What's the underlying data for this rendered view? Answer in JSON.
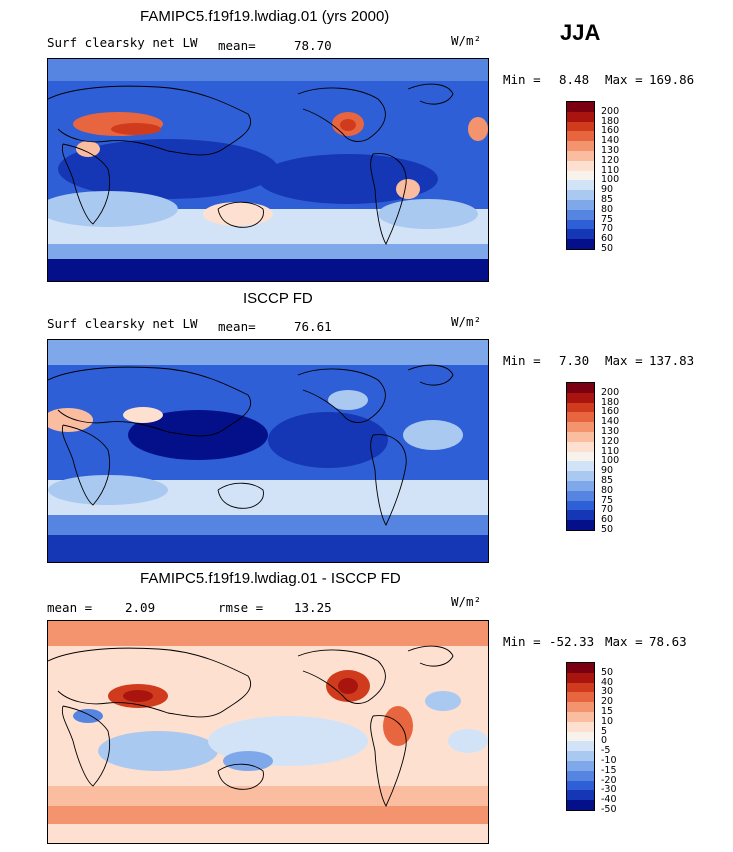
{
  "season": "JJA",
  "unit": "W/m²",
  "panels": [
    {
      "title": "FAMIPC5.f19f19.lwdiag.01 (yrs 2000)",
      "left_label": "Surf clearsky net LW",
      "stat_label": "mean=",
      "stat_value": "78.70",
      "min_label": "Min =",
      "min_value": "8.48",
      "max_label": "Max =",
      "max_value": "169.86",
      "colorbar_ticks": [
        "200",
        "180",
        "160",
        "140",
        "130",
        "120",
        "110",
        "100",
        "90",
        "85",
        "80",
        "75",
        "70",
        "60",
        "50"
      ],
      "colorbar_colors": [
        "#7a0011",
        "#a9150e",
        "#cf3b1c",
        "#e8663f",
        "#f4946f",
        "#fbbda0",
        "#fde0cf",
        "#f7f3ec",
        "#d3e3f7",
        "#aac9f0",
        "#7fa8ea",
        "#5584e1",
        "#2f5fd6",
        "#1537b5",
        "#04108a"
      ]
    },
    {
      "title": "ISCCP FD",
      "left_label": "Surf clearsky net LW",
      "stat_label": "mean=",
      "stat_value": "76.61",
      "min_label": "Min =",
      "min_value": "7.30",
      "max_label": "Max =",
      "max_value": "137.83",
      "colorbar_ticks": [
        "200",
        "180",
        "160",
        "140",
        "130",
        "120",
        "110",
        "100",
        "90",
        "85",
        "80",
        "75",
        "70",
        "60",
        "50"
      ],
      "colorbar_colors": [
        "#7a0011",
        "#a9150e",
        "#cf3b1c",
        "#e8663f",
        "#f4946f",
        "#fbbda0",
        "#fde0cf",
        "#f7f3ec",
        "#d3e3f7",
        "#aac9f0",
        "#7fa8ea",
        "#5584e1",
        "#2f5fd6",
        "#1537b5",
        "#04108a"
      ]
    },
    {
      "title": "FAMIPC5.f19f19.lwdiag.01 - ISCCP FD",
      "left_label": "mean =",
      "stat_label": "rmse =",
      "stat_value": "13.25",
      "left_value": "2.09",
      "min_label": "Min =",
      "min_value": "-52.33",
      "max_label": "Max =",
      "max_value": "78.63",
      "colorbar_ticks": [
        "50",
        "40",
        "30",
        "20",
        "15",
        "10",
        "5",
        "0",
        "-5",
        "-10",
        "-15",
        "-20",
        "-30",
        "-40",
        "-50"
      ],
      "colorbar_colors": [
        "#7a0011",
        "#a9150e",
        "#cf3b1c",
        "#e8663f",
        "#f4946f",
        "#fbbda0",
        "#fde0cf",
        "#f7f3ec",
        "#d3e3f7",
        "#aac9f0",
        "#7fa8ea",
        "#5584e1",
        "#2f5fd6",
        "#1537b5",
        "#04108a"
      ]
    }
  ]
}
